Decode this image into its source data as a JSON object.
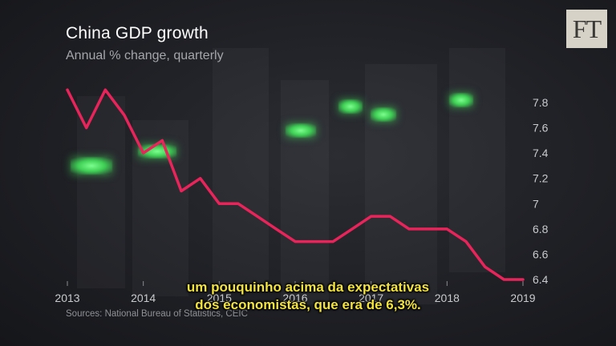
{
  "header": {
    "title": "China GDP growth",
    "subtitle": "Annual % change, quarterly"
  },
  "logo": {
    "text": "FT"
  },
  "source": "Sources: National Bureau of Statistics, CEIC",
  "subtitles": {
    "line1": "um pouquinho acima da expectativas",
    "line2": "dos economistas, que era de 6,3%."
  },
  "colors": {
    "line": "#e8245a",
    "text": "#ffffff",
    "muted": "#a4a6ab",
    "subtitle_text": "#f3e33a"
  },
  "chart_data": {
    "type": "line",
    "title": "China GDP growth",
    "subtitle": "Annual % change, quarterly",
    "xlabel": "",
    "ylabel": "",
    "x": [
      2013.0,
      2013.25,
      2013.5,
      2013.75,
      2014.0,
      2014.25,
      2014.5,
      2014.75,
      2015.0,
      2015.25,
      2015.5,
      2015.75,
      2016.0,
      2016.25,
      2016.5,
      2016.75,
      2017.0,
      2017.25,
      2017.5,
      2017.75,
      2018.0,
      2018.25,
      2018.5,
      2018.75,
      2019.0
    ],
    "series": [
      {
        "values": [
          7.9,
          7.6,
          7.9,
          7.7,
          7.4,
          7.5,
          7.1,
          7.2,
          7.0,
          7.0,
          6.9,
          6.8,
          6.7,
          6.7,
          6.7,
          6.8,
          6.9,
          6.9,
          6.8,
          6.8,
          6.8,
          6.7,
          6.5,
          6.4,
          6.4
        ]
      }
    ],
    "x_ticks": [
      "2013",
      "2014",
      "2015",
      "2016",
      "2017",
      "2018",
      "2019"
    ],
    "y_ticks": [
      "6.4",
      "6.6",
      "6.8",
      "7",
      "7.2",
      "7.4",
      "7.6",
      "7.8"
    ],
    "xlim": [
      2013,
      2019
    ],
    "ylim": [
      6.4,
      7.9
    ],
    "grid": false,
    "legend": "none"
  }
}
